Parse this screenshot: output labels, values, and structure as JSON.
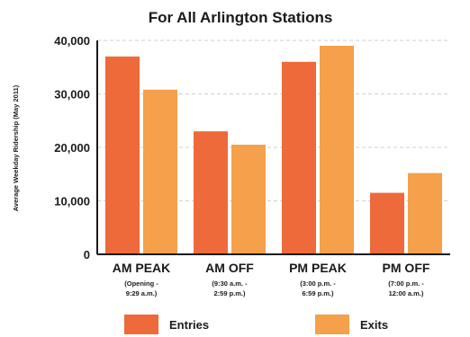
{
  "chart_data": {
    "type": "bar",
    "title": "For All Arlington Stations",
    "ylabel": "Average Weekday Ridership (May 2011)",
    "xlabel": "",
    "ylim": [
      0,
      40000
    ],
    "yticks": [
      "0",
      "10,000",
      "20,000",
      "30,000",
      "40,000"
    ],
    "ytick_values": [
      0,
      10000,
      20000,
      30000,
      40000
    ],
    "grid": true,
    "legend_position": "bottom",
    "categories": [
      "AM PEAK",
      "AM OFF",
      "PM PEAK",
      "PM OFF"
    ],
    "category_sublabels": [
      [
        "(Opening -",
        "9:29 a.m.)"
      ],
      [
        "(9:30 a.m. -",
        "2:59 p.m.)"
      ],
      [
        "(3:00 p.m. -",
        "6:59 p.m.)"
      ],
      [
        "(7:00 p.m. -",
        "12:00 a.m.)"
      ]
    ],
    "series": [
      {
        "name": "Entries",
        "color": "#ee6a3a",
        "values": [
          37000,
          23000,
          36000,
          11500
        ]
      },
      {
        "name": "Exits",
        "color": "#f5a04a",
        "values": [
          30800,
          20500,
          39000,
          15200
        ]
      }
    ]
  }
}
